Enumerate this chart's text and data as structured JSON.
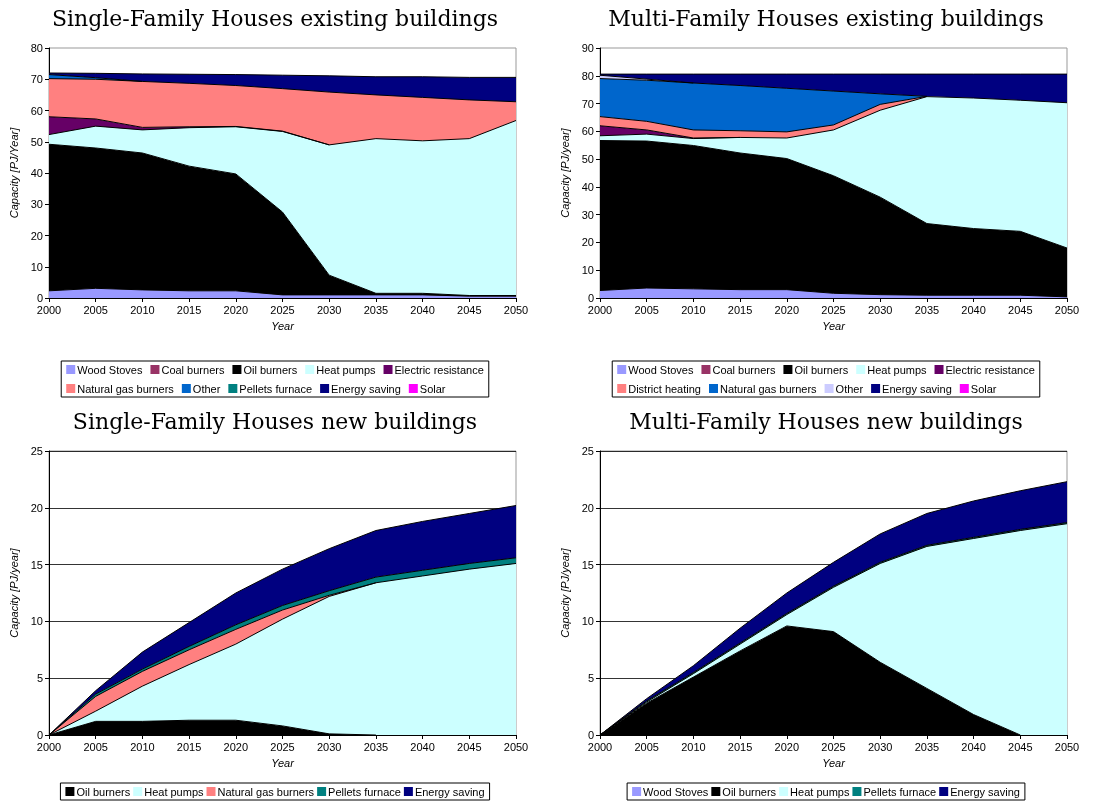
{
  "chart_data": [
    {
      "type": "area",
      "stacked": true,
      "title": "Single-Family Houses existing buildings",
      "xlabel": "Year",
      "ylabel": "Capacity [PJ/Year]",
      "x": [
        2000,
        2005,
        2010,
        2015,
        2020,
        2025,
        2030,
        2035,
        2040,
        2045,
        2050
      ],
      "xlim": [
        2000,
        2050
      ],
      "xticks": [
        2000,
        2005,
        2010,
        2015,
        2020,
        2025,
        2030,
        2035,
        2040,
        2045,
        2050
      ],
      "ylim": [
        0,
        80
      ],
      "yticks": [
        0,
        10,
        20,
        30,
        40,
        50,
        60,
        70,
        80
      ],
      "grid": false,
      "legend": "bottom",
      "marker": "none",
      "series": [
        {
          "name": "Wood Stoves",
          "color": "#9999ff",
          "values": [
            2.3,
            3.1,
            2.6,
            2.3,
            2.3,
            1.0,
            1.0,
            1.0,
            1.0,
            0.6,
            0.6
          ]
        },
        {
          "name": "Coal burners",
          "color": "#993366",
          "values": [
            null,
            null,
            null,
            null,
            null,
            null,
            null,
            null,
            null,
            null,
            null
          ]
        },
        {
          "name": "Oil burners",
          "color": "#000000",
          "values": [
            46.9,
            44.9,
            43.8,
            39.9,
            37.4,
            26.5,
            6.3,
            0.5,
            0.5,
            0.2,
            0.2
          ]
        },
        {
          "name": "Heat pumps",
          "color": "#ccffff",
          "values": [
            3.1,
            7.0,
            7.4,
            12.3,
            15.1,
            25.8,
            41.7,
            49.5,
            48.8,
            50.2,
            56.0
          ]
        },
        {
          "name": "Electric resistance",
          "color": "#660066",
          "values": [
            5.7,
            2.3,
            0.8,
            0.3,
            0.1,
            0.1,
            0,
            null,
            null,
            null,
            null
          ]
        },
        {
          "name": "Natural gas burners",
          "color": "#ff8080",
          "values": [
            12.2,
            12.7,
            14.7,
            13.9,
            13.1,
            13.6,
            16.9,
            14.0,
            13.9,
            12.4,
            6.0
          ]
        },
        {
          "name": "Other",
          "color": "#0066cc",
          "values": [
            1.3,
            0.5,
            0,
            null,
            null,
            null,
            null,
            null,
            null,
            null,
            null
          ]
        },
        {
          "name": "Pellets furnace",
          "color": "#008080",
          "values": [
            null,
            null,
            null,
            null,
            null,
            null,
            null,
            null,
            null,
            null,
            null
          ]
        },
        {
          "name": "Energy saving",
          "color": "#000080",
          "values": [
            0.5,
            1.4,
            2.4,
            2.9,
            3.5,
            4.3,
            5.2,
            5.8,
            6.6,
            7.2,
            7.8
          ]
        },
        {
          "name": "Solar",
          "color": "#ff00ff",
          "values": [
            null,
            null,
            null,
            null,
            null,
            null,
            null,
            null,
            null,
            null,
            null
          ]
        }
      ]
    },
    {
      "type": "area",
      "stacked": true,
      "title": "Multi-Family Houses existing buildings",
      "xlabel": "Year",
      "ylabel": "Capacity [PJ/year]",
      "x": [
        2000,
        2005,
        2010,
        2015,
        2020,
        2025,
        2030,
        2035,
        2040,
        2045,
        2050
      ],
      "xlim": [
        2000,
        2050
      ],
      "xticks": [
        2000,
        2005,
        2010,
        2015,
        2020,
        2025,
        2030,
        2035,
        2040,
        2045,
        2050
      ],
      "ylim": [
        0,
        90
      ],
      "yticks": [
        0,
        10,
        20,
        30,
        40,
        50,
        60,
        70,
        80,
        90
      ],
      "grid": false,
      "legend": "bottom",
      "marker": "none",
      "series": [
        {
          "name": "Wood Stoves",
          "color": "#9999ff",
          "values": [
            2.7,
            3.6,
            3.3,
            3.0,
            3.0,
            1.7,
            1.2,
            1.0,
            1.0,
            1.0,
            0.4
          ]
        },
        {
          "name": "Coal burners",
          "color": "#993366",
          "values": [
            null,
            null,
            null,
            null,
            null,
            null,
            null,
            null,
            null,
            null,
            null
          ]
        },
        {
          "name": "Oil burners",
          "color": "#000000",
          "values": [
            54.0,
            52.9,
            51.6,
            49.2,
            47.2,
            42.3,
            35.1,
            25.8,
            24.0,
            23.0,
            17.6
          ]
        },
        {
          "name": "Heat pumps",
          "color": "#ccffff",
          "values": [
            1.7,
            2.5,
            2.5,
            5.6,
            7.4,
            16.5,
            31.3,
            45.7,
            47.0,
            47.2,
            52.3
          ]
        },
        {
          "name": "Electric resistance",
          "color": "#660066",
          "values": [
            3.6,
            1.5,
            0.2,
            0,
            null,
            null,
            null,
            null,
            null,
            null,
            null
          ]
        },
        {
          "name": "District heating",
          "color": "#ff8080",
          "values": [
            3.3,
            3.1,
            2.9,
            2.4,
            2.2,
            1.8,
            2.1,
            0.1,
            null,
            null,
            null
          ]
        },
        {
          "name": "Natural gas burners",
          "color": "#0066cc",
          "values": [
            13.7,
            14.8,
            16.9,
            16.3,
            15.7,
            12.2,
            3.8,
            0,
            null,
            null,
            null
          ]
        },
        {
          "name": "Other",
          "color": "#ccccff",
          "values": [
            1.2,
            0.4,
            0,
            null,
            null,
            null,
            null,
            null,
            null,
            null,
            null
          ]
        },
        {
          "name": "Energy saving",
          "color": "#000080",
          "values": [
            0.4,
            1.8,
            3.2,
            4.1,
            5.1,
            6.1,
            7.1,
            8.0,
            8.6,
            9.4,
            10.3
          ]
        },
        {
          "name": "Solar",
          "color": "#ff00ff",
          "values": [
            null,
            null,
            null,
            null,
            null,
            null,
            null,
            null,
            null,
            null,
            null
          ]
        }
      ]
    },
    {
      "type": "area",
      "stacked": true,
      "title": "Single-Family Houses new buildings",
      "xlabel": "Year",
      "ylabel": "Capacity [PJ/year]",
      "x": [
        2000,
        2005,
        2010,
        2015,
        2020,
        2025,
        2030,
        2035,
        2040,
        2045,
        2050
      ],
      "xlim": [
        2000,
        2050
      ],
      "xticks": [
        2000,
        2005,
        2010,
        2015,
        2020,
        2025,
        2030,
        2035,
        2040,
        2045,
        2050
      ],
      "ylim": [
        0,
        25
      ],
      "yticks": [
        0,
        5,
        10,
        15,
        20,
        25
      ],
      "grid": "y",
      "legend": "bottom",
      "marker": "none",
      "series": [
        {
          "name": "Oil burners",
          "color": "#000000",
          "values": [
            0,
            1.2,
            1.2,
            1.3,
            1.3,
            0.8,
            0.1,
            0,
            null,
            null,
            null
          ]
        },
        {
          "name": "Heat pumps",
          "color": "#ccffff",
          "values": [
            0,
            0.9,
            3.1,
            4.9,
            6.7,
            9.4,
            12.1,
            13.4,
            14.0,
            14.6,
            15.1
          ]
        },
        {
          "name": "Natural gas burners",
          "color": "#ff8080",
          "values": [
            0,
            1.3,
            1.3,
            1.3,
            1.3,
            0.8,
            0.1,
            0,
            null,
            null,
            null
          ]
        },
        {
          "name": "Pellets furnace",
          "color": "#008080",
          "values": [
            0,
            0.2,
            0.2,
            0.3,
            0.4,
            0.4,
            0.4,
            0.5,
            0.5,
            0.5,
            0.5
          ]
        },
        {
          "name": "Energy saving",
          "color": "#000080",
          "values": [
            0,
            0.3,
            1.5,
            2.1,
            2.8,
            3.2,
            3.7,
            4.1,
            4.3,
            4.4,
            4.6
          ]
        }
      ]
    },
    {
      "type": "area",
      "stacked": true,
      "title": "Multi-Family Houses new buildings",
      "xlabel": "Year",
      "ylabel": "Capacity [PJ/year]",
      "x": [
        2000,
        2005,
        2010,
        2015,
        2020,
        2025,
        2030,
        2035,
        2040,
        2045,
        2050
      ],
      "xlim": [
        2000,
        2050
      ],
      "xticks": [
        2000,
        2005,
        2010,
        2015,
        2020,
        2025,
        2030,
        2035,
        2040,
        2045,
        2050
      ],
      "ylim": [
        0,
        25
      ],
      "yticks": [
        0,
        5,
        10,
        15,
        20,
        25
      ],
      "grid": "y",
      "legend": "bottom",
      "marker": "none",
      "series": [
        {
          "name": "Wood Stoves",
          "color": "#9999ff",
          "values": [
            null,
            null,
            null,
            null,
            null,
            null,
            null,
            null,
            null,
            null,
            null
          ]
        },
        {
          "name": "Oil burners",
          "color": "#000000",
          "values": [
            0,
            2.8,
            5.1,
            7.4,
            9.6,
            9.1,
            6.4,
            4.1,
            1.8,
            0,
            null
          ]
        },
        {
          "name": "Heat pumps",
          "color": "#ccffff",
          "values": [
            0,
            0.1,
            0.3,
            0.6,
            1.0,
            3.9,
            8.7,
            12.5,
            15.5,
            18.0,
            18.6
          ]
        },
        {
          "name": "Pellets furnace",
          "color": "#008080",
          "values": [
            0,
            0.1,
            0.1,
            0.1,
            0.1,
            0.1,
            0.1,
            0.1,
            0.1,
            0.1,
            0.1
          ]
        },
        {
          "name": "Energy saving",
          "color": "#000080",
          "values": [
            0,
            0.2,
            0.6,
            1.3,
            1.8,
            2.1,
            2.5,
            2.8,
            3.2,
            3.4,
            3.6
          ]
        }
      ]
    }
  ]
}
